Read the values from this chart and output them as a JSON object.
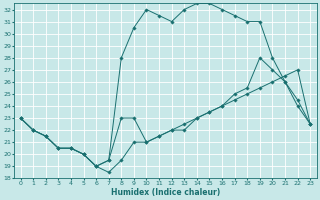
{
  "title": "",
  "xlabel": "Humidex (Indice chaleur)",
  "ylabel": "",
  "xlim": [
    -0.5,
    23.5
  ],
  "ylim": [
    18,
    32.5
  ],
  "yticks": [
    18,
    19,
    20,
    21,
    22,
    23,
    24,
    25,
    26,
    27,
    28,
    29,
    30,
    31,
    32
  ],
  "xticks": [
    0,
    1,
    2,
    3,
    4,
    5,
    6,
    7,
    8,
    9,
    10,
    11,
    12,
    13,
    14,
    15,
    16,
    17,
    18,
    19,
    20,
    21,
    22,
    23
  ],
  "bg_color": "#c8e8e8",
  "grid_color": "#ffffff",
  "line_color": "#1a7070",
  "lines": [
    {
      "x": [
        0,
        1,
        2,
        3,
        4,
        5,
        6,
        7,
        8,
        9,
        10,
        11,
        12,
        13,
        14,
        15,
        16,
        17,
        18,
        19,
        20,
        21,
        22,
        23
      ],
      "y": [
        23,
        22,
        21.5,
        20.5,
        20.5,
        20,
        19,
        18.5,
        19.5,
        21,
        21,
        21.5,
        22,
        22.5,
        23,
        23.5,
        24,
        24.5,
        25,
        25.5,
        26,
        26.5,
        27,
        22.5
      ]
    },
    {
      "x": [
        0,
        1,
        2,
        3,
        4,
        5,
        6,
        7,
        8,
        9,
        10,
        11,
        12,
        13,
        14,
        15,
        16,
        17,
        18,
        19,
        20,
        21,
        22,
        23
      ],
      "y": [
        23,
        22,
        21.5,
        20.5,
        20.5,
        20,
        19,
        19.5,
        28,
        30.5,
        32,
        31.5,
        31,
        32,
        32.5,
        32.5,
        32,
        31.5,
        31,
        31,
        28,
        26,
        24,
        22.5
      ]
    },
    {
      "x": [
        0,
        1,
        2,
        3,
        4,
        5,
        6,
        7,
        8,
        9,
        10,
        11,
        12,
        13,
        14,
        15,
        16,
        17,
        18,
        19,
        20,
        21,
        22,
        23
      ],
      "y": [
        23,
        22,
        21.5,
        20.5,
        20.5,
        20,
        19,
        19.5,
        23,
        23,
        21,
        21.5,
        22,
        22,
        23,
        23.5,
        24,
        25,
        25.5,
        28,
        27,
        26,
        24.5,
        22.5
      ]
    }
  ]
}
